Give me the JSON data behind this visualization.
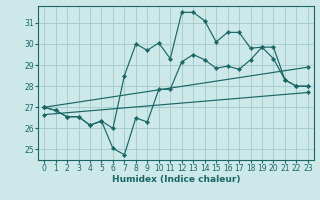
{
  "xlabel": "Humidex (Indice chaleur)",
  "bg_color": "#cce8e8",
  "grid_color": "#aacccc",
  "line_color": "#1a6666",
  "xlim": [
    -0.5,
    23.5
  ],
  "ylim": [
    24.5,
    31.8
  ],
  "xticks": [
    0,
    1,
    2,
    3,
    4,
    5,
    6,
    7,
    8,
    9,
    10,
    11,
    12,
    13,
    14,
    15,
    16,
    17,
    18,
    19,
    20,
    21,
    22,
    23
  ],
  "yticks": [
    25,
    26,
    27,
    28,
    29,
    30,
    31
  ],
  "line1_x": [
    0,
    1,
    2,
    3,
    4,
    5,
    6,
    7,
    8,
    9,
    10,
    11,
    12,
    13,
    14,
    15,
    16,
    17,
    18,
    19,
    20,
    21,
    22,
    23
  ],
  "line1_y": [
    27.0,
    26.85,
    26.55,
    26.55,
    26.15,
    26.35,
    26.0,
    28.5,
    30.0,
    29.7,
    30.05,
    29.3,
    31.5,
    31.5,
    31.1,
    30.1,
    30.55,
    30.55,
    29.8,
    29.85,
    29.85,
    28.3,
    28.0,
    28.0
  ],
  "line2_x": [
    0,
    1,
    2,
    3,
    4,
    5,
    6,
    7,
    8,
    9,
    10,
    11,
    12,
    13,
    14,
    15,
    16,
    17,
    18,
    19,
    20,
    21,
    22,
    23
  ],
  "line2_y": [
    27.0,
    26.85,
    26.55,
    26.55,
    26.15,
    26.35,
    25.05,
    24.75,
    26.5,
    26.3,
    27.85,
    27.85,
    29.15,
    29.5,
    29.25,
    28.85,
    28.95,
    28.8,
    29.25,
    29.85,
    29.3,
    28.3,
    28.0,
    28.0
  ],
  "line3_x": [
    0,
    23
  ],
  "line3_y": [
    27.0,
    28.9
  ],
  "line4_x": [
    0,
    23
  ],
  "line4_y": [
    26.65,
    27.7
  ]
}
